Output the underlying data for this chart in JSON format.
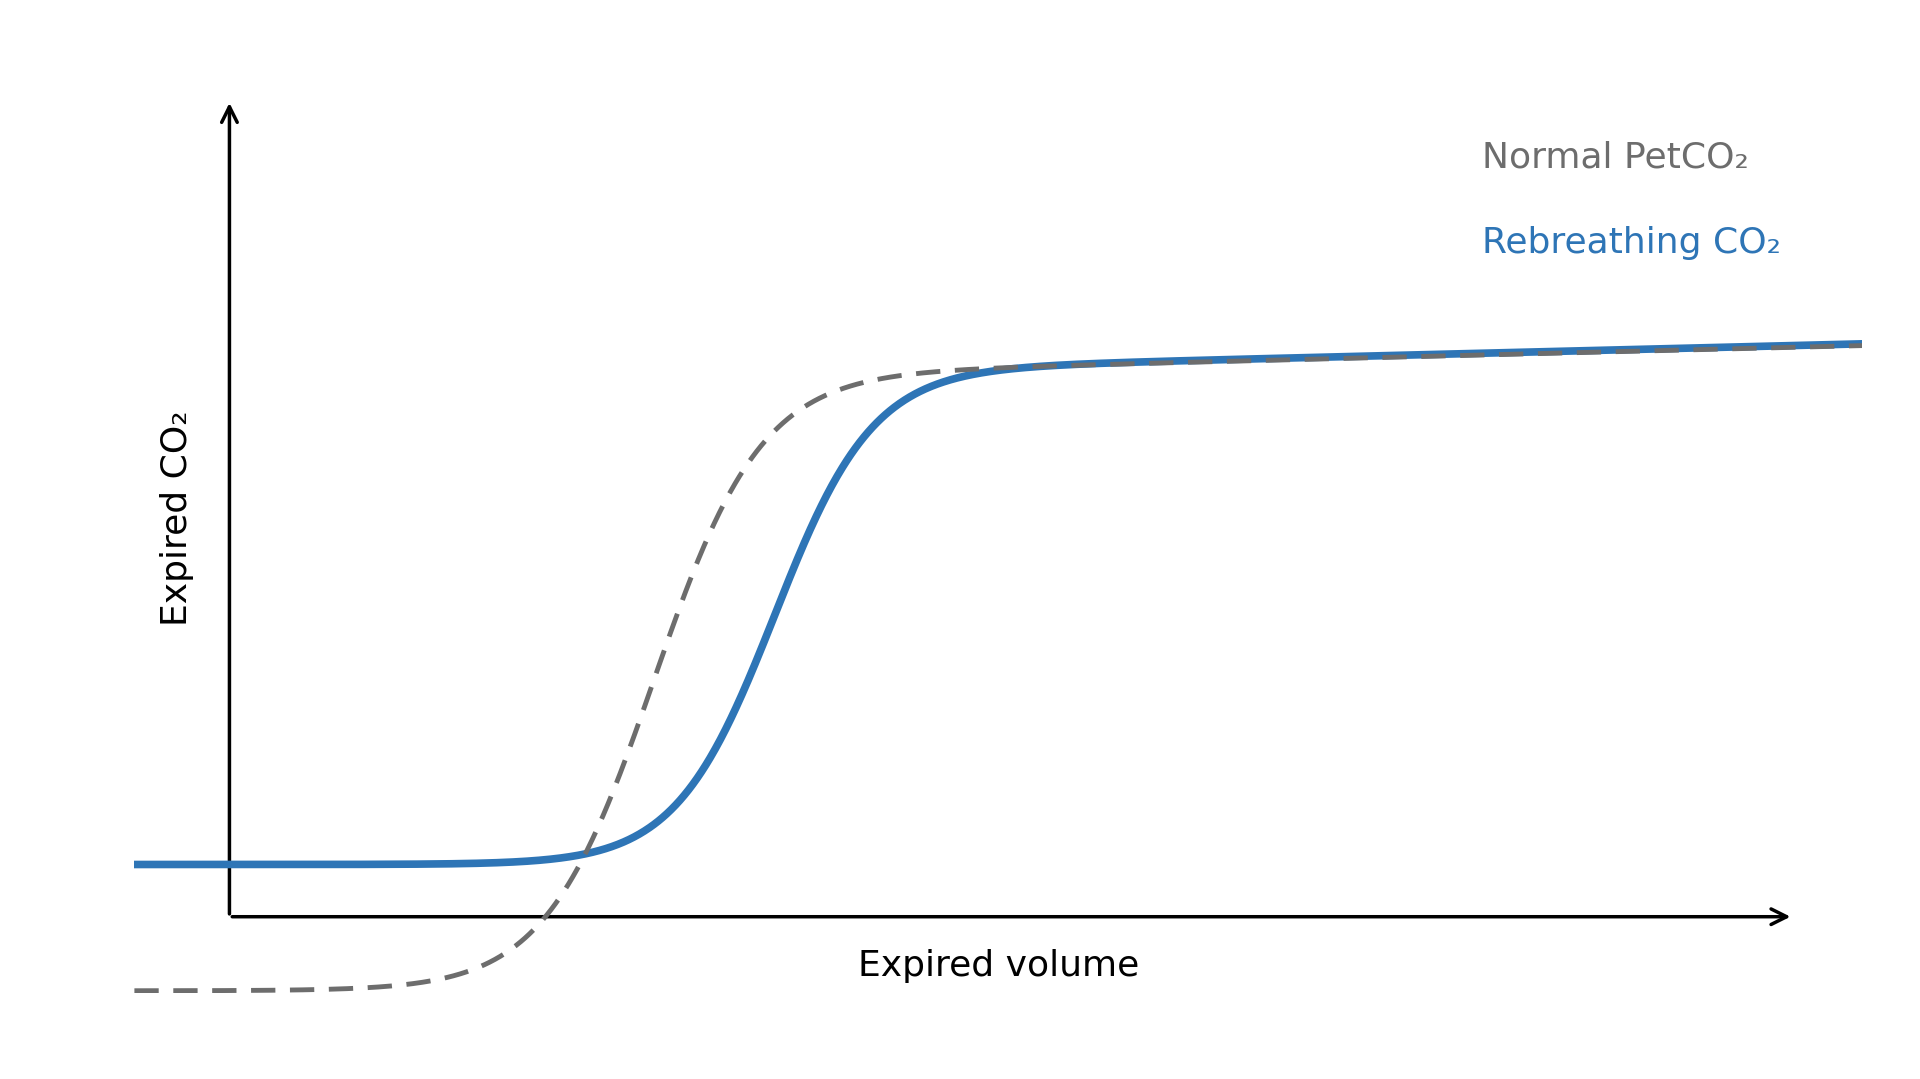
{
  "xlabel": "Expired volume",
  "ylabel": "Expired CO₂",
  "background_color": "#ffffff",
  "blue_color": "#2E75B6",
  "gray_color": "#6d6d6d",
  "legend_normal_label": "Normal PetCO₂",
  "legend_rebreathing_label": "Rebreathing CO₂",
  "legend_normal_color": "#6d6d6d",
  "legend_rebreathing_color": "#2E75B6",
  "xlim": [
    0,
    10
  ],
  "ylim": [
    0,
    10
  ],
  "figsize": [
    19.2,
    10.79
  ],
  "dpi": 100,
  "axis_lw": 2.5,
  "blue_lw": 5.5,
  "gray_lw": 3.5,
  "xlabel_fontsize": 26,
  "ylabel_fontsize": 26,
  "legend_fontsize": 26
}
